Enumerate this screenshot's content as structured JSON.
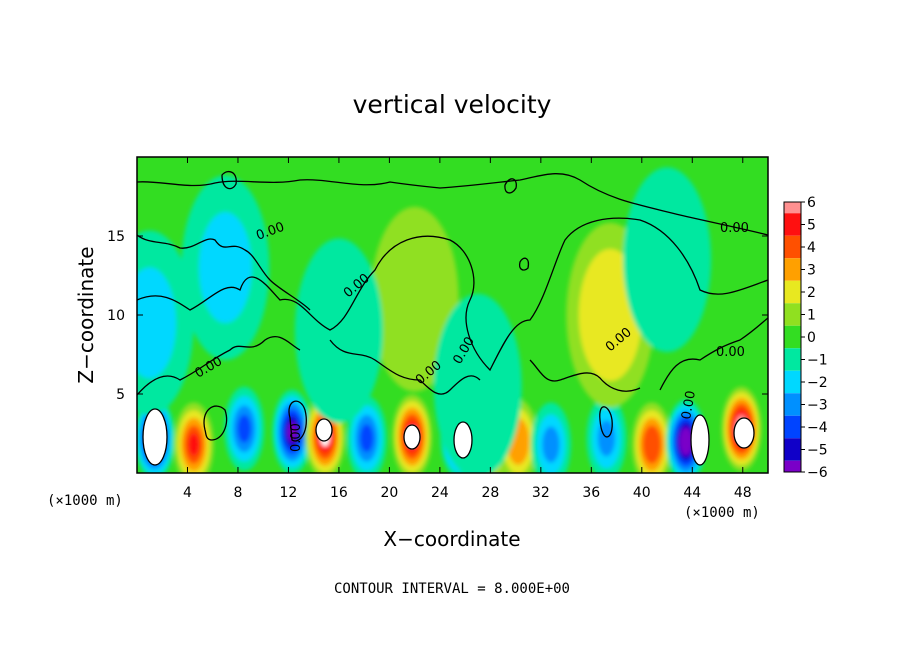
{
  "chart_data": {
    "type": "heatmap",
    "title": "vertical velocity",
    "xlabel": "X−coordinate",
    "ylabel": "Z−coordinate",
    "x_unit_left": "(×1000 m)",
    "x_unit_right": "(×1000 m)",
    "xlim": [
      0,
      50
    ],
    "ylim": [
      0,
      20
    ],
    "x_ticks": [
      "4",
      "8",
      "12",
      "16",
      "20",
      "24",
      "28",
      "32",
      "36",
      "40",
      "44",
      "48"
    ],
    "y_ticks": [
      "5",
      "10",
      "15"
    ],
    "colorbar_ticks": [
      "6",
      "5",
      "4",
      "3",
      "2",
      "1",
      "0",
      "−1",
      "−2",
      "−3",
      "−4",
      "−5",
      "−6"
    ],
    "colorbar_range": [
      -6,
      6
    ],
    "contour_interval_text": "CONTOUR INTERVAL = 8.000E+00",
    "contour_labels": [
      "0.00",
      "0.00",
      "0.00",
      "0.00",
      "0.00",
      "0.00",
      "0.00",
      "0.00",
      "0.00",
      "0.00"
    ],
    "background_value": 0.3,
    "features": [
      {
        "x": 1.4,
        "z": 2.2,
        "value": -6.5
      },
      {
        "x": 4.5,
        "z": 1.8,
        "value": 5.0
      },
      {
        "x": 8.5,
        "z": 2.8,
        "value": -4.0
      },
      {
        "x": 12.3,
        "z": 2.6,
        "value": -5.5
      },
      {
        "x": 14.9,
        "z": 2.3,
        "value": 6.2
      },
      {
        "x": 18.2,
        "z": 2.2,
        "value": -3.5
      },
      {
        "x": 21.8,
        "z": 2.3,
        "value": 6.3
      },
      {
        "x": 25.6,
        "z": 2.3,
        "value": -6.2
      },
      {
        "x": 28.0,
        "z": 2.0,
        "value": 4.0
      },
      {
        "x": 30.2,
        "z": 2.0,
        "value": 3.5
      },
      {
        "x": 32.8,
        "z": 1.8,
        "value": -3.0
      },
      {
        "x": 37.2,
        "z": 2.2,
        "value": -3.2
      },
      {
        "x": 40.8,
        "z": 1.8,
        "value": 4.5
      },
      {
        "x": 43.5,
        "z": 2.0,
        "value": -6.5
      },
      {
        "x": 47.9,
        "z": 2.8,
        "value": 6.5
      },
      {
        "x": 37.5,
        "z": 10.0,
        "value": 2.5
      },
      {
        "x": 22.0,
        "z": 11.0,
        "value": 1.2
      },
      {
        "x": 16.0,
        "z": 9.0,
        "value": -0.8
      },
      {
        "x": 1.0,
        "z": 9.5,
        "value": -1.5
      },
      {
        "x": 7.0,
        "z": 13.0,
        "value": -1.8
      },
      {
        "x": 27.0,
        "z": 5.5,
        "value": -1.2
      },
      {
        "x": 42.0,
        "z": 13.5,
        "value": -0.8
      }
    ]
  }
}
